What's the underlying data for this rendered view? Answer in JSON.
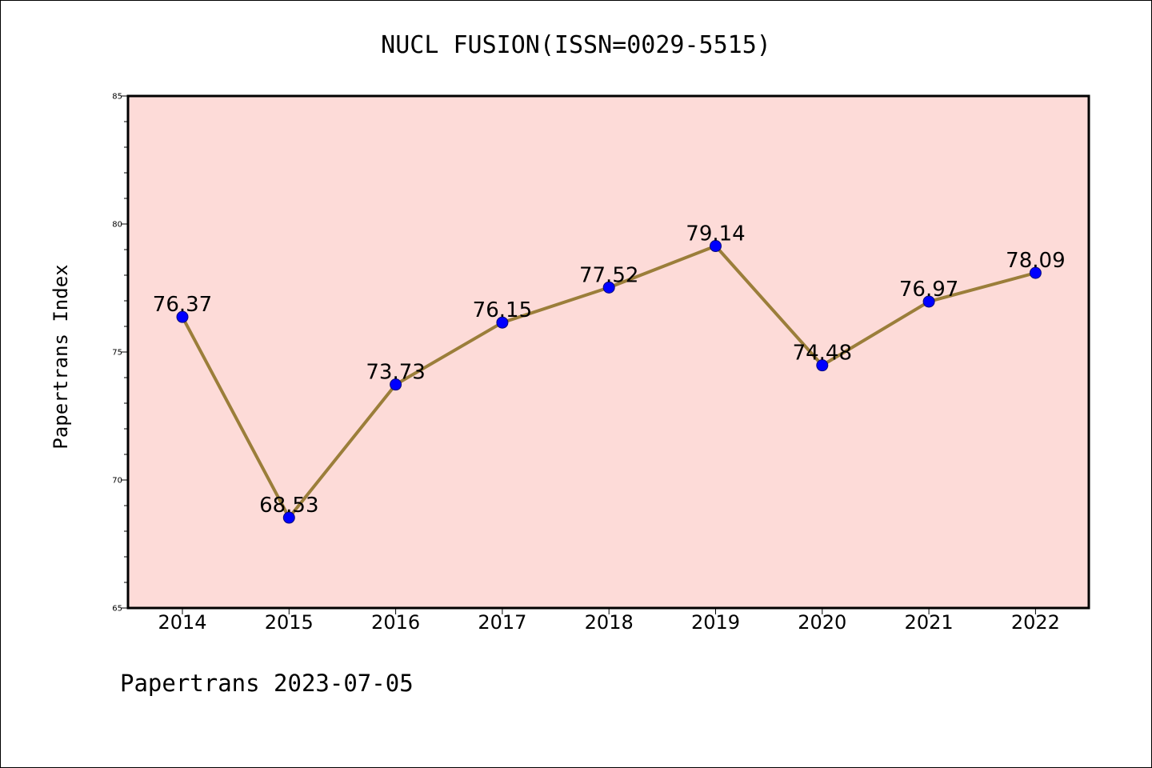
{
  "chart_data": {
    "type": "line",
    "title": "NUCL FUSION(ISSN=0029-5515)",
    "xlabel": "",
    "ylabel": "Papertrans Index",
    "categories": [
      "2014",
      "2015",
      "2016",
      "2017",
      "2018",
      "2019",
      "2020",
      "2021",
      "2022"
    ],
    "series": [
      {
        "name": "Papertrans Index",
        "values": [
          76.37,
          68.53,
          73.73,
          76.15,
          77.52,
          79.14,
          74.48,
          76.97,
          78.09
        ],
        "labels": [
          "76.37",
          "68.53",
          "73.73",
          "76.15",
          "77.52",
          "79.14",
          "74.48",
          "76.97",
          "78.09"
        ]
      }
    ],
    "ylim": [
      65,
      85
    ],
    "yticks": [
      "65",
      "70",
      "75",
      "80",
      "85"
    ],
    "yticks_values": [
      65,
      70,
      75,
      80,
      85
    ],
    "y_minor_step": 1,
    "grid": false,
    "footer": "Papertrans 2023-07-05",
    "colors": {
      "plot_background": "#fddbd8",
      "line": "#9b7e3a",
      "marker_fill": "#0000ff",
      "marker_edge": "#0a0a7a",
      "axis": "#000000"
    }
  }
}
